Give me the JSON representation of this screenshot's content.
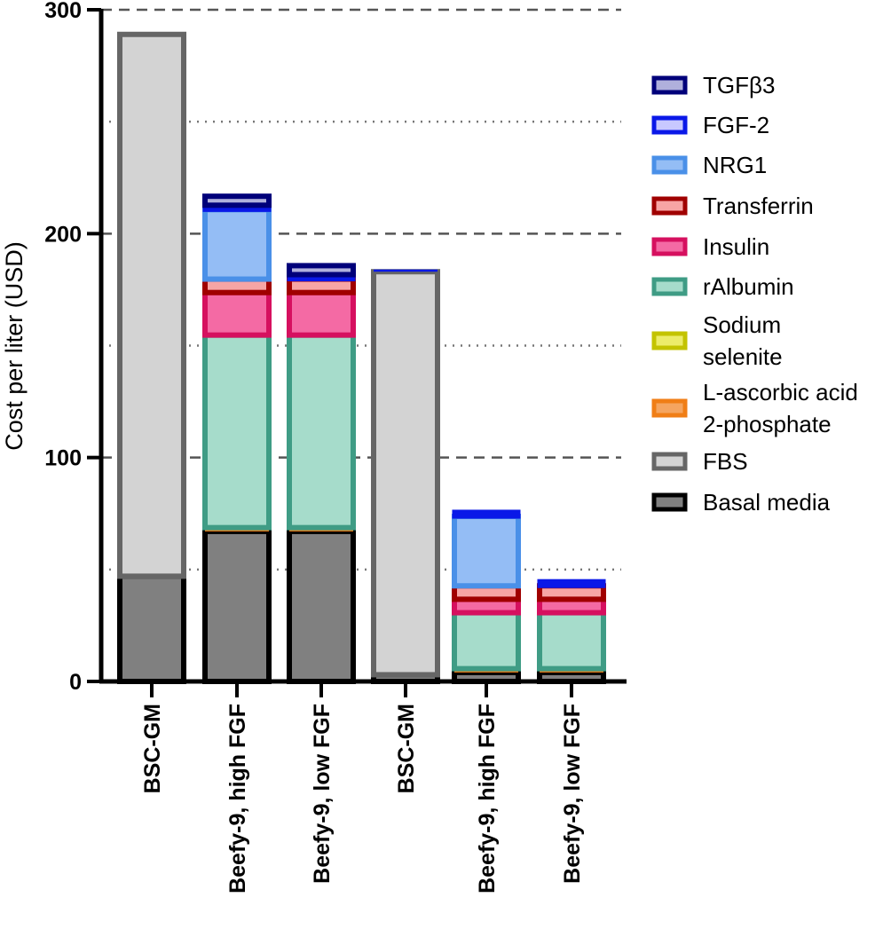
{
  "chart_data": {
    "type": "bar",
    "stacked": true,
    "title": "",
    "xlabel": "",
    "ylabel": "Cost per liter (USD)",
    "ylim": [
      0,
      300
    ],
    "yticks": [
      0,
      100,
      200,
      300
    ],
    "y_tick_labels": [
      "0",
      "100",
      "200",
      "300"
    ],
    "gridlines": {
      "dashed_at": [
        100,
        200,
        300
      ],
      "dotted_at": [
        50,
        150,
        250
      ]
    },
    "categories": [
      "BSC-GM",
      "Beefy-9, high FGF",
      "Beefy-9, low FGF",
      "BSC-GM",
      "Beefy-9, high FGF",
      "Beefy-9, low FGF"
    ],
    "series": [
      {
        "name": "Basal media",
        "fill": "#808080",
        "border": "#000000",
        "values": [
          47,
          67,
          67,
          3,
          4,
          4
        ]
      },
      {
        "name": "FBS",
        "fill": "#d3d3d3",
        "border": "#666666",
        "values": [
          242,
          0,
          0,
          180,
          0,
          0
        ]
      },
      {
        "name": "L-ascorbic acid 2-phosphate",
        "fill": "#f5a560",
        "border": "#f07e16",
        "values": [
          0,
          1.5,
          1.5,
          0,
          1.5,
          1.5
        ]
      },
      {
        "name": "Sodium selenite",
        "fill": "#ecec6a",
        "border": "#c3c300",
        "values": [
          0,
          0.2,
          0.2,
          0,
          0.2,
          0.2
        ]
      },
      {
        "name": "rAlbumin",
        "fill": "#a6dccb",
        "border": "#3f9c85",
        "values": [
          0,
          86,
          86,
          0,
          25,
          25
        ]
      },
      {
        "name": "Insulin",
        "fill": "#f46aa4",
        "border": "#d6105f",
        "values": [
          0,
          19,
          19,
          0,
          6,
          6
        ]
      },
      {
        "name": "Transferrin",
        "fill": "#f7a5a5",
        "border": "#a00000",
        "values": [
          0,
          6,
          6,
          0,
          6,
          6
        ]
      },
      {
        "name": "NRG1",
        "fill": "#94bdf5",
        "border": "#4a90e8",
        "values": [
          0,
          31,
          0,
          0,
          31,
          0
        ]
      },
      {
        "name": "FGF-2",
        "fill": "#c8c8ff",
        "border": "#0a18e8",
        "values": [
          0,
          2,
          2,
          1,
          2,
          2
        ]
      },
      {
        "name": "TGFβ3",
        "fill": "#b0b0dc",
        "border": "#00007a",
        "values": [
          0,
          4,
          4,
          0,
          0,
          0
        ]
      }
    ],
    "legend": {
      "placement": "right",
      "entries": [
        "TGFβ3",
        "FGF-2",
        "NRG1",
        "Transferrin",
        "Insulin",
        "rAlbumin",
        "Sodium selenite",
        "L-ascorbic acid 2-phosphate",
        "FBS",
        "Basal media"
      ],
      "label_lines": [
        [
          "TGFβ3"
        ],
        [
          "FGF-2"
        ],
        [
          "NRG1"
        ],
        [
          "Transferrin"
        ],
        [
          "Insulin"
        ],
        [
          "rAlbumin"
        ],
        [
          "Sodium",
          "selenite"
        ],
        [
          "L-ascorbic acid",
          "2-phosphate"
        ],
        [
          "FBS"
        ],
        [
          "Basal media"
        ]
      ]
    }
  }
}
